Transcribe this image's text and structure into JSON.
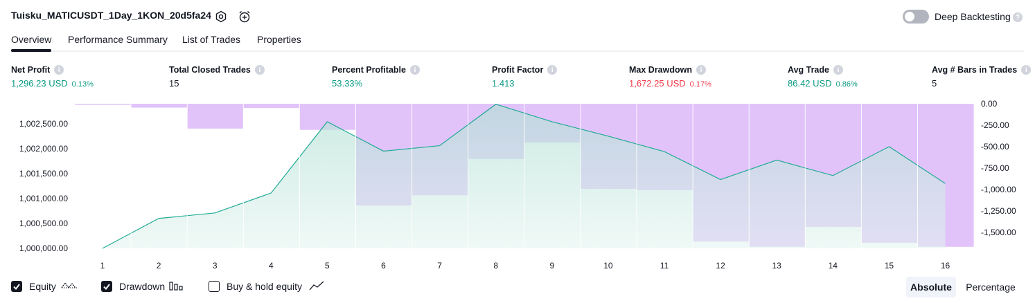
{
  "header": {
    "title": "Tuisku_MATICUSDT_1Day_1KON_20d5fa24",
    "deep_backtesting_label": "Deep Backtesting"
  },
  "tabs": [
    {
      "label": "Overview",
      "active": true
    },
    {
      "label": "Performance Summary"
    },
    {
      "label": "List of Trades"
    },
    {
      "label": "Properties"
    }
  ],
  "metrics": [
    {
      "label": "Net Profit",
      "value": "1,296.23 USD",
      "sub": "0.13%",
      "color": "#089981"
    },
    {
      "label": "Total Closed Trades",
      "value": "15",
      "sub": "",
      "color": "#131722"
    },
    {
      "label": "Percent Profitable",
      "value": "53.33%",
      "sub": "",
      "color": "#089981"
    },
    {
      "label": "Profit Factor",
      "value": "1.413",
      "sub": "",
      "color": "#089981"
    },
    {
      "label": "Max Drawdown",
      "value": "1,672.25 USD",
      "sub": "0.17%",
      "color": "#f23645"
    },
    {
      "label": "Avg Trade",
      "value": "86.42 USD",
      "sub": "0.86%",
      "color": "#089981"
    },
    {
      "label": "Avg # Bars in Trades",
      "value": "5",
      "sub": "",
      "color": "#131722"
    }
  ],
  "chart_data": {
    "type": "area",
    "x": [
      1,
      2,
      3,
      4,
      5,
      6,
      7,
      8,
      9,
      10,
      11,
      12,
      13,
      14,
      15,
      16
    ],
    "y_left_ticks": [
      "1,000,000.00",
      "1,000,500.00",
      "1,001,000.00",
      "1,001,500.00",
      "1,002,000.00",
      "1,002,500.00"
    ],
    "y_right_ticks": [
      "0.00",
      "-250.00",
      "-500.00",
      "-750.00",
      "-1,000.00",
      "-1,250.00",
      "-1,500.00"
    ],
    "y_left_range": [
      1000000,
      1002900
    ],
    "y_right_range": [
      -1690,
      0
    ],
    "series": [
      {
        "name": "Equity",
        "axis": "left",
        "color": "#22ab94",
        "values": [
          1000000,
          1000600,
          1000710,
          1001110,
          1002540,
          1001950,
          1002060,
          1002890,
          1002540,
          1002250,
          1001940,
          1001380,
          1001770,
          1001460,
          1002040,
          1001300
        ]
      },
      {
        "name": "Drawdown",
        "axis": "right",
        "color": "#e1c3fa",
        "values": [
          -5,
          -45,
          -290,
          -50,
          -305,
          -1190,
          -1070,
          -645,
          -455,
          -995,
          -1010,
          -1610,
          -1672,
          -1440,
          -1625,
          -1672
        ]
      }
    ]
  },
  "legend": {
    "equity_label": "Equity",
    "drawdown_label": "Drawdown",
    "buyhold_label": "Buy & hold equity",
    "equity_checked": true,
    "drawdown_checked": true,
    "buyhold_checked": false
  },
  "view_toggle": {
    "absolute_label": "Absolute",
    "percentage_label": "Percentage",
    "active": "Absolute"
  },
  "icons": {
    "settings": "settings-hexagon-icon",
    "alarm": "alarm-clock-add-icon",
    "info": "info-icon",
    "help": "question-icon"
  }
}
